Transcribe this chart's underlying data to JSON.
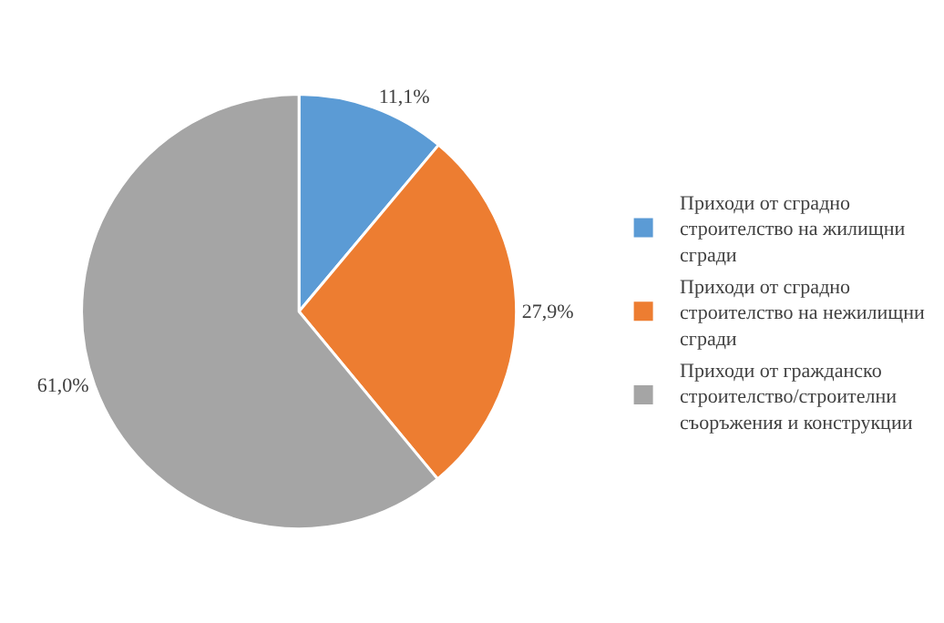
{
  "chart_data": {
    "type": "pie",
    "categories": [
      "Приходи от сградно строителство на жилищни сгради",
      "Приходи от сградно строителство на нежилищни сгради",
      "Приходи от гражданско строителство/строителни съоръжения и конструкции"
    ],
    "values": [
      11.1,
      27.9,
      61.0
    ],
    "colors": [
      "#5b9bd5",
      "#ed7d31",
      "#a5a5a5"
    ],
    "value_labels": [
      "11,1%",
      "27,9%",
      "61,0%"
    ],
    "legend": "right"
  }
}
